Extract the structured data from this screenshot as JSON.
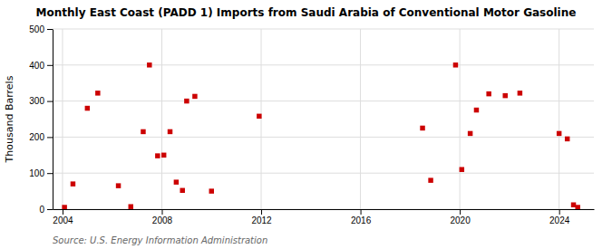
{
  "chart_data": {
    "type": "scatter",
    "title": "Monthly East Coast (PADD 1) Imports from Saudi Arabia of Conventional Motor Gasoline",
    "ylabel": "Thousand Barrels",
    "annotations": [
      "Source: U.S. Energy Information Administration"
    ],
    "color": "#CC0000",
    "marker": "square",
    "grid": true,
    "xlim": [
      2003.6,
      2025.4
    ],
    "ylim": [
      0,
      500
    ],
    "xticks": [
      2004,
      2008,
      2012,
      2016,
      2020,
      2024
    ],
    "yticks": [
      0,
      100,
      200,
      300,
      400,
      500
    ],
    "x": [
      2004.08,
      2004.42,
      2005.0,
      2005.42,
      2006.25,
      2006.75,
      2007.25,
      2007.5,
      2007.83,
      2008.08,
      2008.33,
      2008.58,
      2008.83,
      2009.0,
      2009.33,
      2010.0,
      2011.92,
      2018.5,
      2018.83,
      2019.83,
      2020.08,
      2020.42,
      2020.67,
      2021.17,
      2021.83,
      2022.42,
      2024.0,
      2024.33,
      2024.58,
      2024.75
    ],
    "values": [
      5,
      70,
      280,
      322,
      65,
      7,
      215,
      400,
      148,
      150,
      215,
      75,
      52,
      300,
      313,
      50,
      258,
      225,
      80,
      400,
      110,
      210,
      275,
      320,
      315,
      322,
      210,
      195,
      12,
      5
    ]
  }
}
